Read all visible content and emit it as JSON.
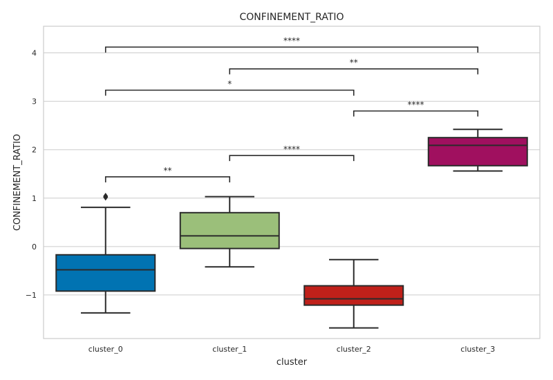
{
  "chart_data": {
    "type": "box",
    "title": "CONFINEMENT_RATIO",
    "xlabel": "cluster",
    "ylabel": "CONFINEMENT_RATIO",
    "ylim": [
      -1.9,
      4.55
    ],
    "yticks": [
      -1,
      0,
      1,
      2,
      3,
      4
    ],
    "ytick_labels": [
      "−1",
      "0",
      "1",
      "2",
      "3",
      "4"
    ],
    "grid": true,
    "categories": [
      "cluster_0",
      "cluster_1",
      "cluster_2",
      "cluster_3"
    ],
    "boxes": [
      {
        "name": "cluster_0",
        "color": "#0173b2",
        "whisker_low": -1.37,
        "q1": -0.92,
        "median": -0.48,
        "q3": -0.17,
        "whisker_high": 0.81,
        "outliers": [
          1.04,
          1.02
        ]
      },
      {
        "name": "cluster_1",
        "color": "#9bbf7a",
        "whisker_low": -0.42,
        "q1": -0.04,
        "median": 0.22,
        "q3": 0.7,
        "whisker_high": 1.03,
        "outliers": []
      },
      {
        "name": "cluster_2",
        "color": "#c0201a",
        "whisker_low": -1.68,
        "q1": -1.21,
        "median": -1.08,
        "q3": -0.81,
        "whisker_high": -0.27,
        "outliers": []
      },
      {
        "name": "cluster_3",
        "color": "#a0105f",
        "whisker_low": 1.56,
        "q1": 1.67,
        "median": 2.09,
        "q3": 2.25,
        "whisker_high": 2.42,
        "outliers": []
      }
    ],
    "annotations": [
      {
        "from": "cluster_0",
        "to": "cluster_1",
        "y": 1.44,
        "label": "**"
      },
      {
        "from": "cluster_1",
        "to": "cluster_2",
        "y": 1.88,
        "label": "****"
      },
      {
        "from": "cluster_2",
        "to": "cluster_3",
        "y": 2.8,
        "label": "****"
      },
      {
        "from": "cluster_0",
        "to": "cluster_2",
        "y": 3.23,
        "label": "*"
      },
      {
        "from": "cluster_1",
        "to": "cluster_3",
        "y": 3.67,
        "label": "**"
      },
      {
        "from": "cluster_0",
        "to": "cluster_3",
        "y": 4.12,
        "label": "****"
      }
    ],
    "colors": {
      "grid": "#cccccc",
      "frame": "#cccccc",
      "line": "#2a2a2a"
    }
  }
}
